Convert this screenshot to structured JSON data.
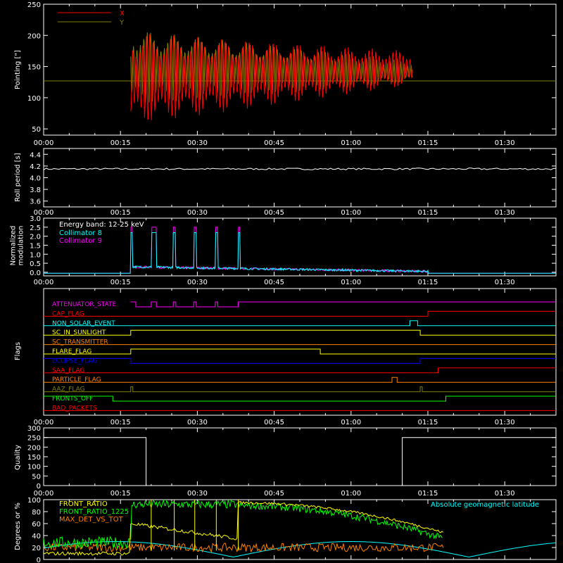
{
  "time_ticks": [
    "00:00",
    "00:15",
    "00:30",
    "00:45",
    "01:00",
    "01:15",
    "01:30"
  ],
  "colors": {
    "background": "#000000",
    "axes": "#ffffff",
    "x_series": "#ff0000",
    "y_series": "#808000",
    "cyan": "#00ffff",
    "magenta": "#ff00ff",
    "red": "#ff0000",
    "orange": "#ff8000",
    "yellow": "#ffff00",
    "blue": "#0000ff",
    "green": "#00ff00",
    "olive": "#808000"
  },
  "chart_data": [
    {
      "type": "line",
      "panel": "pointing",
      "ylabel": "Pointing [\"]",
      "xlim": [
        0,
        100
      ],
      "ylim": [
        40,
        250
      ],
      "yticks": [
        50,
        100,
        150,
        200,
        250
      ],
      "legend": {
        "position": "top-left"
      },
      "series": [
        {
          "name": "X",
          "color": "#ff0000",
          "baseline": 127,
          "start": 17,
          "end": 72,
          "envelope_start": [
            55,
            205
          ],
          "envelope_end": [
            120,
            175
          ]
        },
        {
          "name": "Y",
          "color": "#808000",
          "baseline": 127,
          "start": 17,
          "end": 72,
          "envelope_start": [
            85,
            210
          ],
          "envelope_end": [
            125,
            160
          ]
        }
      ]
    },
    {
      "type": "line",
      "panel": "roll_period",
      "ylabel": "Roll period [s]",
      "xlim": [
        0,
        100
      ],
      "ylim": [
        3.5,
        4.5
      ],
      "yticks": [
        "3.6",
        "3.8",
        "4.0",
        "4.2",
        "4.4"
      ],
      "series": [
        {
          "color": "#ffffff",
          "value": 4.15
        }
      ]
    },
    {
      "type": "line",
      "panel": "modulation",
      "ylabel": [
        "Normalized",
        "modulation"
      ],
      "xlim": [
        0,
        100
      ],
      "ylim": [
        -0.2,
        3.0
      ],
      "yticks": [
        "0.0",
        "0.5",
        "1.0",
        "1.5",
        "2.0",
        "2.5",
        "3.0"
      ],
      "annotation": "Energy band: 12-25 keV",
      "series": [
        {
          "name": "Collimator 8",
          "color": "#00ffff"
        },
        {
          "name": "Collimator 9",
          "color": "#ff00ff"
        }
      ],
      "active_range": [
        17,
        75
      ],
      "spikes": [
        [
          17,
          17.3
        ],
        [
          21,
          22
        ],
        [
          25.3,
          25.8
        ],
        [
          29.3,
          29.8
        ],
        [
          33.5,
          34
        ],
        [
          38,
          38.3
        ]
      ]
    },
    {
      "type": "line",
      "panel": "flags",
      "ylabel": "Flags",
      "xlim": [
        0,
        100
      ],
      "flags": [
        {
          "label": "ATTENUATOR_STATE",
          "color": "#ff00ff",
          "segments": [
            [
              17,
              18,
              1
            ],
            [
              18,
              21,
              0
            ],
            [
              21,
              22,
              1
            ],
            [
              22,
              25.3,
              0
            ],
            [
              25.3,
              25.8,
              1
            ],
            [
              25.8,
              29.3,
              0
            ],
            [
              29.3,
              29.8,
              1
            ],
            [
              29.8,
              33.5,
              0
            ],
            [
              33.5,
              34,
              1
            ],
            [
              34,
              38,
              0
            ],
            [
              38,
              100,
              1
            ]
          ]
        },
        {
          "label": "CAP_FLAG",
          "color": "#ff0000",
          "segments": [
            [
              0,
              75,
              0
            ],
            [
              75,
              100,
              1
            ]
          ]
        },
        {
          "label": "NON_SOLAR_EVENT",
          "color": "#00ffff",
          "segments": [
            [
              0,
              71.5,
              0
            ],
            [
              71.5,
              73,
              1
            ],
            [
              73,
              100,
              0
            ]
          ]
        },
        {
          "label": "SC_IN_SUNLIGHT",
          "color": "#ffff00",
          "segments": [
            [
              0,
              17,
              0
            ],
            [
              17,
              73.5,
              1
            ],
            [
              73.5,
              100,
              0
            ]
          ]
        },
        {
          "label": "SC_TRANSMITTER",
          "color": "#ff8000",
          "segments": [
            [
              0,
              100,
              0
            ]
          ]
        },
        {
          "label": "FLARE_FLAG",
          "color": "#ffff00",
          "segments": [
            [
              0,
              17,
              0
            ],
            [
              17,
              54,
              1
            ],
            [
              54,
              100,
              0
            ]
          ]
        },
        {
          "label": "ECLIPSE_FLAG",
          "color": "#0000ff",
          "segments": [
            [
              0,
              17,
              1
            ],
            [
              17,
              73.5,
              0
            ],
            [
              73.5,
              100,
              1
            ]
          ]
        },
        {
          "label": "SAA_FLAG",
          "color": "#ff0000",
          "segments": [
            [
              0,
              77,
              0
            ],
            [
              77,
              100,
              1
            ]
          ]
        },
        {
          "label": "PARTICLE_FLAG",
          "color": "#ff8000",
          "segments": [
            [
              0,
              68,
              0
            ],
            [
              68,
              69,
              1
            ],
            [
              69,
              100,
              0
            ]
          ]
        },
        {
          "label": "AAZ_FLAG",
          "color": "#808000",
          "segments": [
            [
              0,
              17,
              0
            ],
            [
              17,
              17.4,
              1
            ],
            [
              17.4,
              73.5,
              0
            ],
            [
              73.5,
              73.9,
              1
            ],
            [
              73.9,
              100,
              0
            ]
          ]
        },
        {
          "label": "FRONTS_OFF",
          "color": "#00ff00",
          "segments": [
            [
              0,
              13.5,
              1
            ],
            [
              13.5,
              78.5,
              0
            ],
            [
              78.5,
              100,
              1
            ]
          ]
        },
        {
          "label": "BAD_PACKETS",
          "color": "#ff0000",
          "segments": [
            [
              0,
              100,
              0
            ]
          ]
        }
      ]
    },
    {
      "type": "line",
      "panel": "quality",
      "ylabel": "Quality",
      "xlim": [
        0,
        100
      ],
      "ylim": [
        0,
        300
      ],
      "yticks": [
        "0",
        "50",
        "100",
        "150",
        "200",
        "250",
        "300"
      ],
      "series": [
        {
          "color": "#ffffff",
          "segments": [
            [
              0,
              20,
              250
            ],
            [
              20,
              70,
              0
            ],
            [
              70,
              100,
              250
            ]
          ]
        }
      ]
    },
    {
      "type": "line",
      "panel": "ratios",
      "ylabel": "Degrees or %",
      "xlim": [
        0,
        100
      ],
      "ylim": [
        0,
        100
      ],
      "yticks": [
        "0",
        "20",
        "40",
        "60",
        "80",
        "100"
      ],
      "series": [
        {
          "name": "FRONT_RATIO",
          "color": "#ffff00"
        },
        {
          "name": "FRONT_RATIO_1225",
          "color": "#00ff00"
        },
        {
          "name": "MAX_DET_VS_TOT",
          "color": "#ff8000"
        },
        {
          "name": "Absolute geomagnetic latitude",
          "color": "#00ffff"
        }
      ]
    }
  ]
}
